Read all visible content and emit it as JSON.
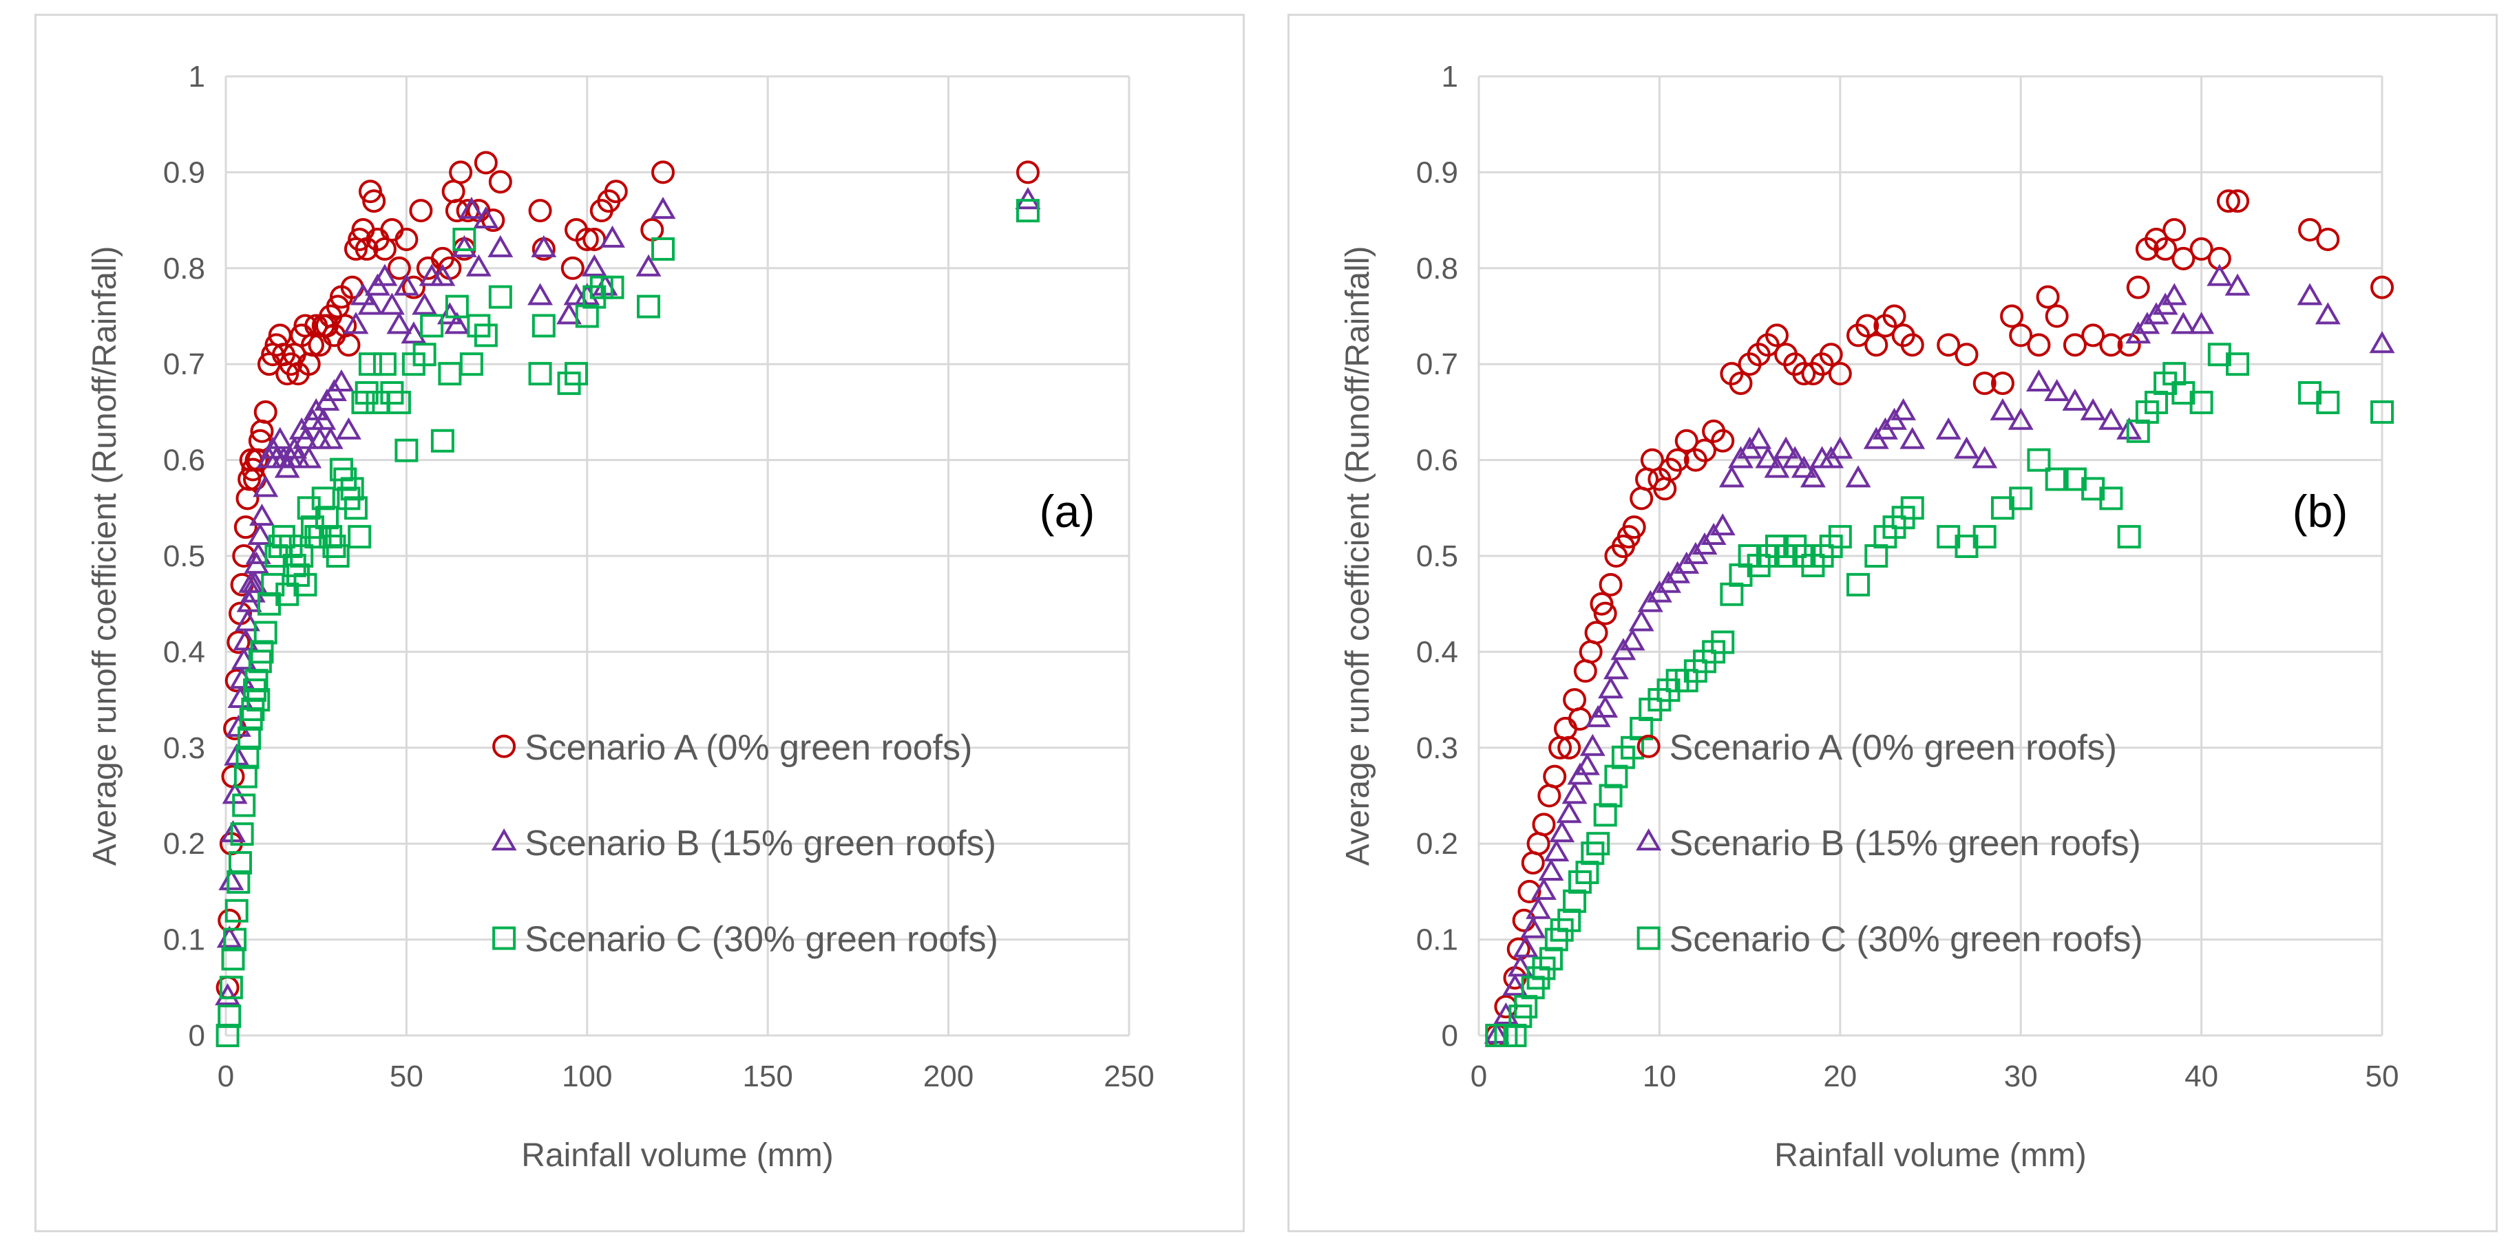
{
  "colors": {
    "scenario_a": "#c00000",
    "scenario_b": "#7030a0",
    "scenario_c": "#00b050",
    "grid": "#d9d9d9",
    "text": "#595959"
  },
  "chart_data": [
    {
      "type": "scatter",
      "panel_label": "(a)",
      "xlabel": "Rainfall volume (mm)",
      "ylabel": "Average runoff coefficient (Runoff/Rainfall)",
      "xlim": [
        0,
        250
      ],
      "ylim": [
        0,
        1
      ],
      "xticks": [
        0,
        50,
        100,
        150,
        200,
        250
      ],
      "yticks": [
        0,
        0.1,
        0.2,
        0.3,
        0.4,
        0.5,
        0.6,
        0.7,
        0.8,
        0.9,
        1
      ],
      "grid": true,
      "legend_position": "bottom-right",
      "series": [
        {
          "name": "Scenario A (0% green roofs)",
          "marker": "circle",
          "x": [
            0.5,
            1,
            1.5,
            2,
            2.5,
            3,
            3.5,
            4,
            4.5,
            5,
            5.5,
            6,
            6.5,
            7,
            7.5,
            8,
            8.5,
            9,
            9.5,
            10,
            11,
            12,
            13,
            14,
            15,
            16,
            17,
            18,
            19,
            20,
            21,
            22,
            23,
            24,
            25,
            26,
            27,
            28,
            29,
            30,
            31,
            32,
            33,
            34,
            35,
            36,
            37,
            38,
            39,
            40,
            41,
            42,
            44,
            46,
            48,
            50,
            52,
            54,
            56,
            60,
            62,
            63,
            64,
            65,
            66,
            67,
            70,
            72,
            74,
            76,
            87,
            88,
            96,
            97,
            100,
            102,
            104,
            106,
            108,
            118,
            121,
            222
          ],
          "y": [
            0.05,
            0.12,
            0.2,
            0.27,
            0.32,
            0.37,
            0.41,
            0.44,
            0.47,
            0.5,
            0.53,
            0.56,
            0.58,
            0.6,
            0.59,
            0.58,
            0.6,
            0.6,
            0.62,
            0.63,
            0.65,
            0.7,
            0.71,
            0.72,
            0.73,
            0.71,
            0.69,
            0.7,
            0.71,
            0.69,
            0.73,
            0.74,
            0.7,
            0.72,
            0.74,
            0.72,
            0.74,
            0.74,
            0.75,
            0.73,
            0.76,
            0.77,
            0.74,
            0.72,
            0.78,
            0.82,
            0.83,
            0.84,
            0.82,
            0.88,
            0.87,
            0.83,
            0.82,
            0.84,
            0.8,
            0.83,
            0.78,
            0.86,
            0.8,
            0.81,
            0.8,
            0.88,
            0.86,
            0.9,
            0.82,
            0.86,
            0.86,
            0.91,
            0.85,
            0.89,
            0.86,
            0.82,
            0.8,
            0.84,
            0.83,
            0.83,
            0.86,
            0.87,
            0.88,
            0.84,
            0.9,
            0.9
          ]
        },
        {
          "name": "Scenario B (15% green roofs)",
          "marker": "triangle",
          "x": [
            0.5,
            1,
            1.5,
            2,
            2.5,
            3,
            3.5,
            4,
            4.5,
            5,
            5.5,
            6,
            6.5,
            7,
            7.5,
            8,
            8.5,
            9,
            9.5,
            10,
            11,
            12,
            13,
            14,
            15,
            16,
            17,
            18,
            19,
            20,
            21,
            22,
            23,
            24,
            25,
            26,
            27,
            28,
            29,
            30,
            32,
            34,
            36,
            38,
            40,
            42,
            44,
            46,
            48,
            50,
            52,
            55,
            57,
            60,
            62,
            64,
            66,
            68,
            70,
            72,
            76,
            87,
            88,
            95,
            97,
            100,
            102,
            105,
            107,
            117,
            121,
            222
          ],
          "y": [
            0.04,
            0.1,
            0.16,
            0.21,
            0.25,
            0.29,
            0.32,
            0.35,
            0.37,
            0.39,
            0.41,
            0.43,
            0.45,
            0.47,
            0.46,
            0.47,
            0.49,
            0.5,
            0.52,
            0.54,
            0.57,
            0.6,
            0.61,
            0.6,
            0.62,
            0.6,
            0.59,
            0.6,
            0.61,
            0.6,
            0.63,
            0.62,
            0.6,
            0.64,
            0.65,
            0.62,
            0.64,
            0.66,
            0.62,
            0.67,
            0.68,
            0.63,
            0.74,
            0.77,
            0.76,
            0.78,
            0.79,
            0.76,
            0.74,
            0.78,
            0.73,
            0.76,
            0.79,
            0.79,
            0.75,
            0.74,
            0.82,
            0.86,
            0.8,
            0.85,
            0.82,
            0.77,
            0.82,
            0.75,
            0.77,
            0.77,
            0.8,
            0.78,
            0.83,
            0.8,
            0.86,
            0.87
          ]
        },
        {
          "name": "Scenario C (30% green roofs)",
          "marker": "square",
          "x": [
            0.5,
            1,
            1.5,
            2,
            2.5,
            3,
            3.5,
            4,
            4.5,
            5,
            5.5,
            6,
            6.5,
            7,
            7.5,
            8,
            8.5,
            9,
            9.5,
            10,
            11,
            12,
            13,
            14,
            15,
            16,
            17,
            18,
            19,
            20,
            21,
            22,
            23,
            24,
            25,
            26,
            27,
            28,
            29,
            30,
            31,
            32,
            33,
            34,
            35,
            36,
            37,
            38,
            39,
            40,
            42,
            44,
            46,
            48,
            50,
            52,
            55,
            57,
            60,
            62,
            64,
            66,
            68,
            70,
            72,
            76,
            87,
            88,
            95,
            97,
            100,
            102,
            104,
            107,
            117,
            121,
            222
          ],
          "y": [
            0,
            0.02,
            0.05,
            0.08,
            0.1,
            0.13,
            0.16,
            0.18,
            0.21,
            0.24,
            0.27,
            0.29,
            0.31,
            0.33,
            0.34,
            0.36,
            0.37,
            0.35,
            0.39,
            0.4,
            0.42,
            0.45,
            0.47,
            0.5,
            0.51,
            0.52,
            0.46,
            0.51,
            0.49,
            0.48,
            0.5,
            0.47,
            0.55,
            0.53,
            0.52,
            0.52,
            0.56,
            0.54,
            0.52,
            0.51,
            0.5,
            0.59,
            0.58,
            0.56,
            0.57,
            0.55,
            0.52,
            0.66,
            0.67,
            0.7,
            0.66,
            0.7,
            0.67,
            0.66,
            0.61,
            0.7,
            0.71,
            0.74,
            0.62,
            0.69,
            0.76,
            0.83,
            0.7,
            0.74,
            0.73,
            0.77,
            0.69,
            0.74,
            0.68,
            0.69,
            0.75,
            0.77,
            0.78,
            0.78,
            0.76,
            0.82,
            0.86
          ]
        }
      ],
      "legend": [
        "Scenario A (0% green roofs)",
        "Scenario B (15% green roofs)",
        "Scenario C (30% green roofs)"
      ]
    },
    {
      "type": "scatter",
      "panel_label": "(b)",
      "xlabel": "Rainfall volume (mm)",
      "ylabel": "Average runoff coefficient (Runoff/Rainfall)",
      "xlim": [
        0,
        50
      ],
      "ylim": [
        0,
        1
      ],
      "xticks": [
        0,
        10,
        20,
        30,
        40,
        50
      ],
      "yticks": [
        0,
        0.1,
        0.2,
        0.3,
        0.4,
        0.5,
        0.6,
        0.7,
        0.8,
        0.9,
        1
      ],
      "grid": true,
      "legend_position": "bottom-right",
      "series": [
        {
          "name": "Scenario A (0% green roofs)",
          "marker": "circle",
          "x": [
            1,
            1.5,
            2,
            2.2,
            2.5,
            2.8,
            3,
            3.3,
            3.6,
            3.9,
            4.2,
            4.5,
            4.8,
            5,
            5.3,
            5.6,
            5.9,
            6.2,
            6.5,
            6.8,
            7,
            7.3,
            7.6,
            8,
            8.3,
            8.6,
            9,
            9.3,
            9.6,
            10,
            10.3,
            10.6,
            11,
            11.5,
            12,
            12.5,
            13,
            13.5,
            14,
            14.5,
            15,
            15.5,
            16,
            16.5,
            17,
            17.5,
            18,
            18.5,
            19,
            19.5,
            20,
            21,
            21.5,
            22,
            22.5,
            23,
            23.5,
            24,
            26,
            27,
            28,
            29,
            29.5,
            30,
            31,
            31.5,
            32,
            33,
            34,
            35,
            36,
            36.5,
            37,
            37.5,
            38,
            38.5,
            39,
            40,
            41,
            41.5,
            42,
            46,
            47,
            50
          ],
          "y": [
            0,
            0.03,
            0.06,
            0.09,
            0.12,
            0.15,
            0.18,
            0.2,
            0.22,
            0.25,
            0.27,
            0.3,
            0.32,
            0.3,
            0.35,
            0.33,
            0.38,
            0.4,
            0.42,
            0.45,
            0.44,
            0.47,
            0.5,
            0.51,
            0.52,
            0.53,
            0.56,
            0.58,
            0.6,
            0.58,
            0.57,
            0.59,
            0.6,
            0.62,
            0.6,
            0.61,
            0.63,
            0.62,
            0.69,
            0.68,
            0.7,
            0.71,
            0.72,
            0.73,
            0.71,
            0.7,
            0.69,
            0.69,
            0.7,
            0.71,
            0.69,
            0.73,
            0.74,
            0.72,
            0.74,
            0.75,
            0.73,
            0.72,
            0.72,
            0.71,
            0.68,
            0.68,
            0.75,
            0.73,
            0.72,
            0.77,
            0.75,
            0.72,
            0.73,
            0.72,
            0.72,
            0.78,
            0.82,
            0.83,
            0.82,
            0.84,
            0.81,
            0.82,
            0.81,
            0.87,
            0.87,
            0.84,
            0.83,
            0.78
          ]
        },
        {
          "name": "Scenario B (15% green roofs)",
          "marker": "triangle",
          "x": [
            1,
            1.5,
            2,
            2.3,
            2.6,
            3,
            3.3,
            3.6,
            4,
            4.3,
            4.6,
            5,
            5.3,
            5.6,
            6,
            6.3,
            6.6,
            7,
            7.3,
            7.6,
            8,
            8.5,
            9,
            9.5,
            10,
            10.5,
            11,
            11.5,
            12,
            12.5,
            13,
            13.5,
            14,
            14.5,
            15,
            15.5,
            16,
            16.5,
            17,
            17.5,
            18,
            18.5,
            19,
            19.5,
            20,
            21,
            22,
            22.5,
            23,
            23.5,
            24,
            26,
            27,
            28,
            29,
            30,
            31,
            32,
            33,
            34,
            35,
            36,
            36.5,
            37,
            37.5,
            38,
            38.5,
            39,
            40,
            41,
            42,
            46,
            47,
            50
          ],
          "y": [
            0,
            0.02,
            0.05,
            0.07,
            0.09,
            0.11,
            0.13,
            0.15,
            0.17,
            0.19,
            0.21,
            0.23,
            0.25,
            0.27,
            0.28,
            0.3,
            0.33,
            0.34,
            0.36,
            0.38,
            0.4,
            0.41,
            0.43,
            0.45,
            0.46,
            0.47,
            0.48,
            0.49,
            0.5,
            0.51,
            0.52,
            0.53,
            0.58,
            0.6,
            0.61,
            0.62,
            0.6,
            0.59,
            0.61,
            0.6,
            0.59,
            0.58,
            0.6,
            0.6,
            0.61,
            0.58,
            0.62,
            0.63,
            0.64,
            0.65,
            0.62,
            0.63,
            0.61,
            0.6,
            0.65,
            0.64,
            0.68,
            0.67,
            0.66,
            0.65,
            0.64,
            0.63,
            0.73,
            0.74,
            0.75,
            0.76,
            0.77,
            0.74,
            0.74,
            0.79,
            0.78,
            0.77,
            0.75,
            0.72
          ]
        },
        {
          "name": "Scenario C (30% green roofs)",
          "marker": "square",
          "x": [
            1,
            1.5,
            2,
            2.3,
            2.6,
            3,
            3.3,
            3.6,
            4,
            4.3,
            4.6,
            5,
            5.3,
            5.6,
            6,
            6.3,
            6.6,
            7,
            7.3,
            7.6,
            8,
            8.5,
            9,
            9.5,
            10,
            10.5,
            11,
            11.5,
            12,
            12.5,
            13,
            13.5,
            14,
            14.5,
            15,
            15.5,
            16,
            16.5,
            17,
            17.5,
            18,
            18.5,
            19,
            19.5,
            20,
            21,
            22,
            22.5,
            23,
            23.5,
            24,
            26,
            27,
            28,
            29,
            30,
            31,
            32,
            33,
            34,
            35,
            36,
            36.5,
            37,
            37.5,
            38,
            38.5,
            39,
            40,
            41,
            42,
            46,
            47,
            50
          ],
          "y": [
            0,
            0,
            0,
            0.02,
            0.03,
            0.05,
            0.06,
            0.07,
            0.08,
            0.1,
            0.11,
            0.12,
            0.14,
            0.16,
            0.17,
            0.19,
            0.2,
            0.23,
            0.25,
            0.27,
            0.29,
            0.3,
            0.32,
            0.34,
            0.35,
            0.36,
            0.37,
            0.37,
            0.38,
            0.39,
            0.4,
            0.41,
            0.46,
            0.48,
            0.5,
            0.49,
            0.5,
            0.51,
            0.5,
            0.51,
            0.5,
            0.49,
            0.5,
            0.51,
            0.52,
            0.47,
            0.5,
            0.52,
            0.53,
            0.54,
            0.55,
            0.52,
            0.51,
            0.52,
            0.55,
            0.56,
            0.6,
            0.58,
            0.58,
            0.57,
            0.56,
            0.52,
            0.63,
            0.65,
            0.66,
            0.68,
            0.69,
            0.67,
            0.66,
            0.71,
            0.7,
            0.67,
            0.66,
            0.65
          ]
        }
      ],
      "legend": [
        "Scenario A (0% green roofs)",
        "Scenario B (15% green roofs)",
        "Scenario C (30% green roofs)"
      ]
    }
  ]
}
